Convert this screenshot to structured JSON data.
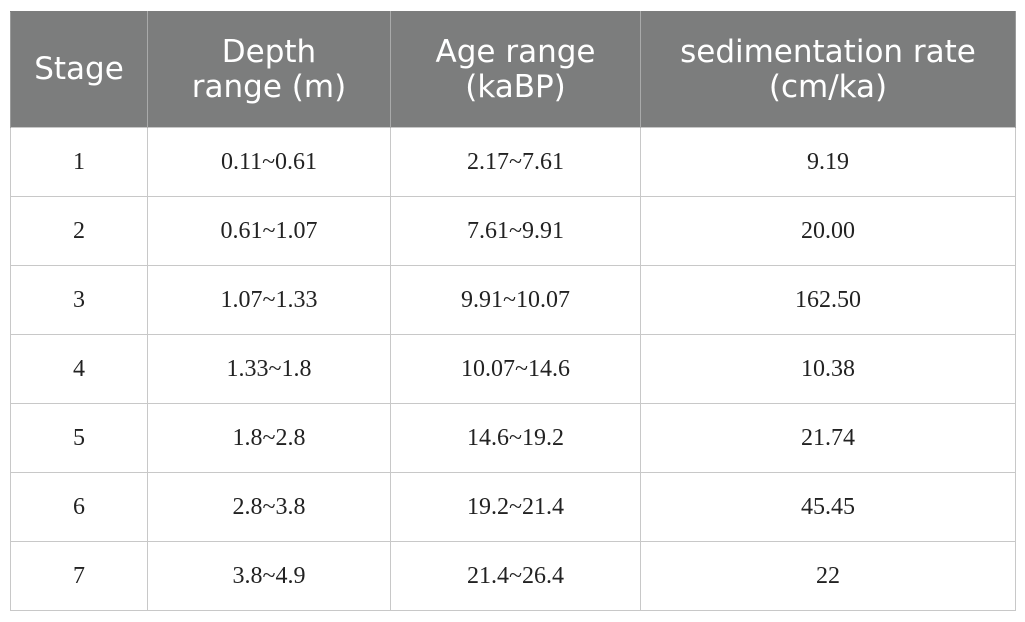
{
  "table": {
    "headers": [
      [
        "Stage"
      ],
      [
        "Depth",
        "range (m)"
      ],
      [
        "Age range",
        "(kaBP)"
      ],
      [
        "sedimentation rate",
        "(cm/ka)"
      ]
    ],
    "rows": [
      [
        "1",
        "0.11~0.61",
        "2.17~7.61",
        "9.19"
      ],
      [
        "2",
        "0.61~1.07",
        "7.61~9.91",
        "20.00"
      ],
      [
        "3",
        "1.07~1.33",
        "9.91~10.07",
        "162.50"
      ],
      [
        "4",
        "1.33~1.8",
        "10.07~14.6",
        "10.38"
      ],
      [
        "5",
        "1.8~2.8",
        "14.6~19.2",
        "21.74"
      ],
      [
        "6",
        "2.8~3.8",
        "19.2~21.4",
        "45.45"
      ],
      [
        "7",
        "3.8~4.9",
        "21.4~26.4",
        "22"
      ]
    ]
  }
}
